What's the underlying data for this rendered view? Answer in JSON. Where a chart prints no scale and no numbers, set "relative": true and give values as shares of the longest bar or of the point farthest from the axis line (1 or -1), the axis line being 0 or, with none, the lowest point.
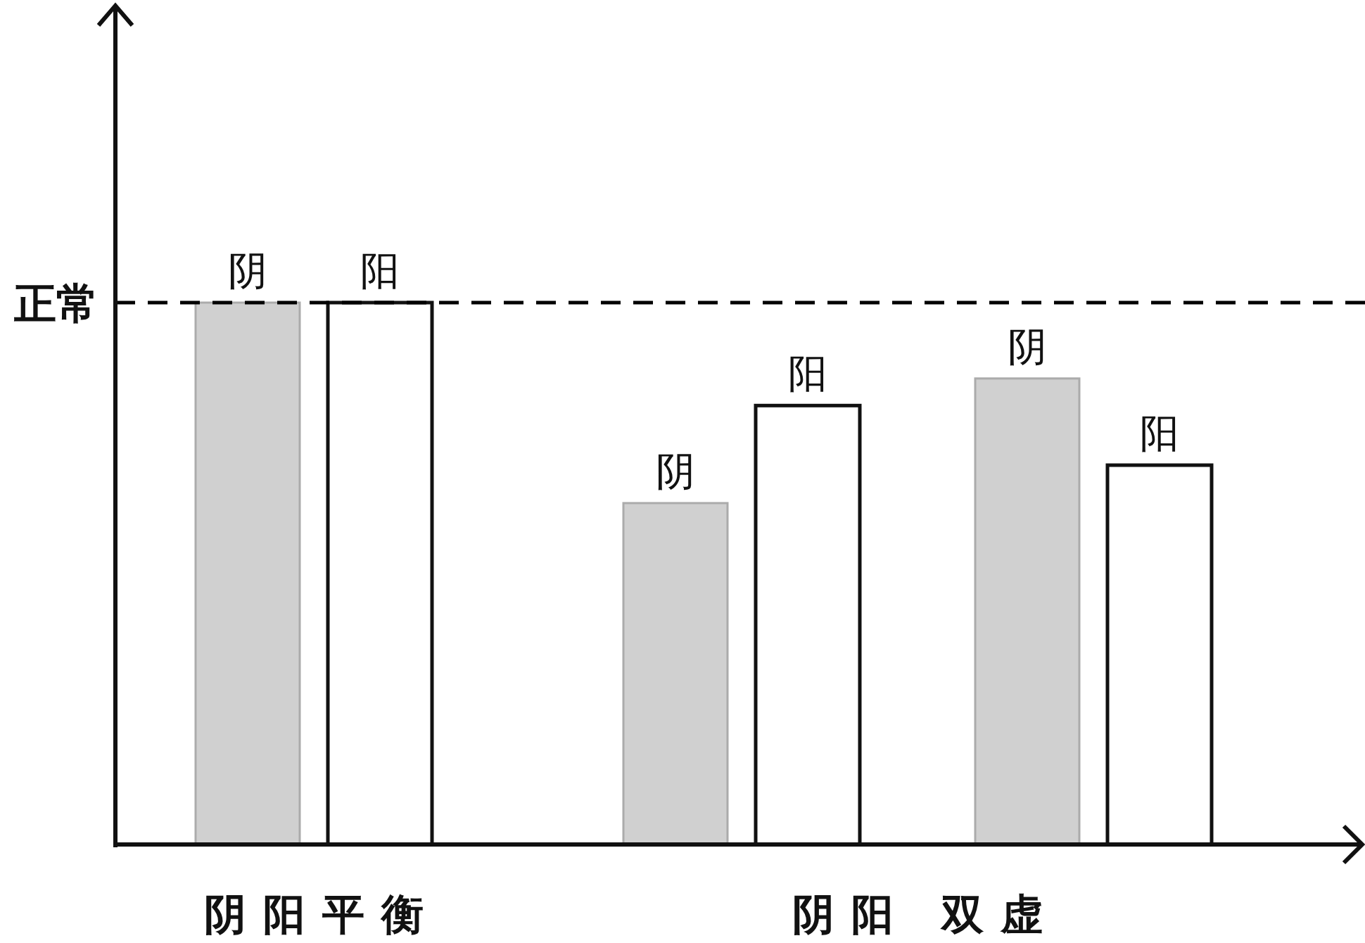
{
  "chart_data": {
    "type": "bar",
    "relative": true,
    "categories": [
      "阴阳平衡",
      "阴阳 双虚"
    ],
    "series": [
      {
        "name": "阴",
        "color": "#d0d0d0",
        "values": [
          1,
          0.63
        ]
      },
      {
        "name": "阳",
        "color": "#ffffff",
        "values": [
          1,
          0.81
        ]
      },
      {
        "name": "阴",
        "color": "#d0d0d0",
        "values": [
          null,
          0.86
        ]
      },
      {
        "name": "阳",
        "color": "#ffffff",
        "values": [
          null,
          0.7
        ]
      }
    ],
    "ref_lines": [
      {
        "axis": "y",
        "value": 1,
        "label": "正常",
        "line_style": "dashed",
        "color": "#000000"
      }
    ]
  }
}
